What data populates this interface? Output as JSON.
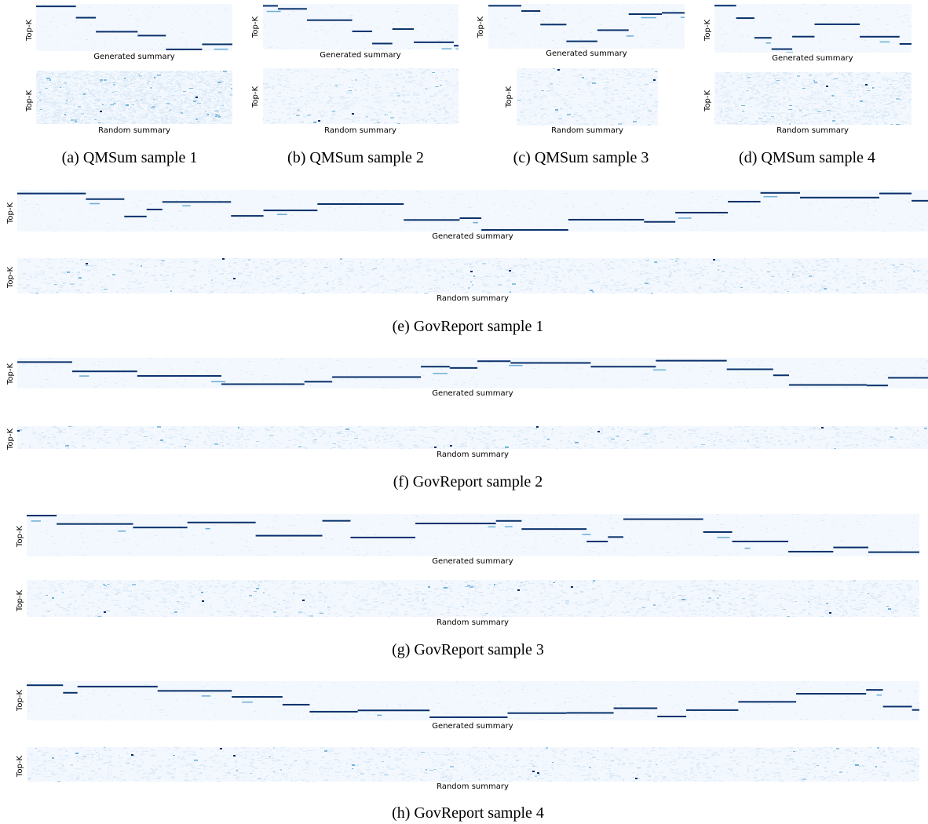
{
  "labels": {
    "top_k": "Top-K",
    "generated": "Generated summary",
    "random": "Random summary"
  },
  "captions": {
    "a": "(a)  QMSum sample 1",
    "b": "(b)  QMSum sample 2",
    "c": "(c)  QMSum sample 3",
    "d": "(d)  QMSum sample 4",
    "e": "(e)  GovReport sample 1",
    "f": "(f)  GovReport sample 2",
    "g": "(g)  GovReport sample 3",
    "h": "(h)  GovReport sample 4"
  },
  "colors": {
    "background_cell": "#f3f8fe",
    "light_cell": "#dbe9f6",
    "mid_cell": "#6aaed6",
    "strong_cell": "#08306b"
  },
  "chart_data": {
    "type": "heatmap",
    "colormap": "Blues",
    "panels": 16,
    "ylabel": "Top-K",
    "xlabels": [
      "Generated summary",
      "Random summary"
    ]
  }
}
